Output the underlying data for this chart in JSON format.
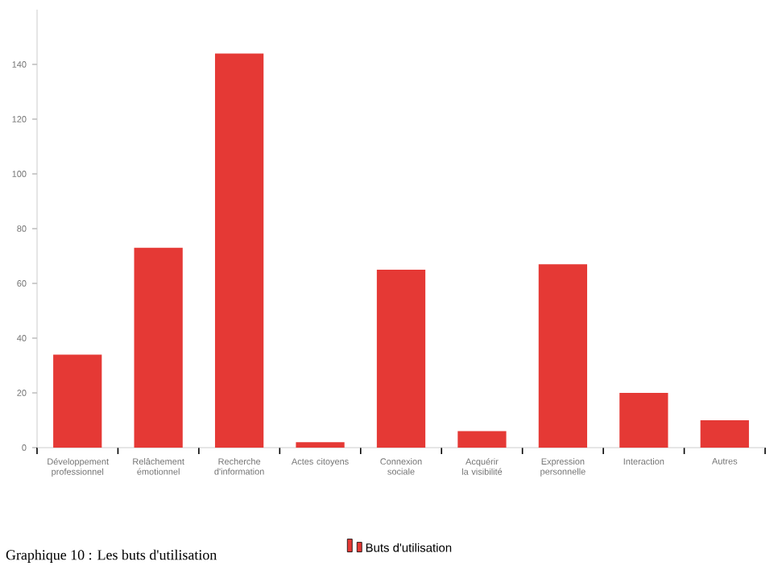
{
  "chart_data": {
    "type": "bar",
    "categories": [
      "Développement professionnel",
      "Relâchement émotionnel",
      "Recherche d'information",
      "Actes citoyens",
      "Connexion sociale",
      "Acquérir la visibilité",
      "Expression personnelle",
      "Interaction",
      "Autres"
    ],
    "series": [
      {
        "name": "Buts d'utilisation",
        "color": "#e53935",
        "values": [
          34,
          73,
          144,
          2,
          65,
          6,
          67,
          20,
          10
        ]
      }
    ],
    "ylim": [
      0,
      160
    ],
    "yticks": [
      0,
      20,
      40,
      60,
      80,
      100,
      120,
      140
    ],
    "legend": "bottom",
    "annotations": [
      "Graphique 10 : Les buts d'utilisation"
    ]
  }
}
